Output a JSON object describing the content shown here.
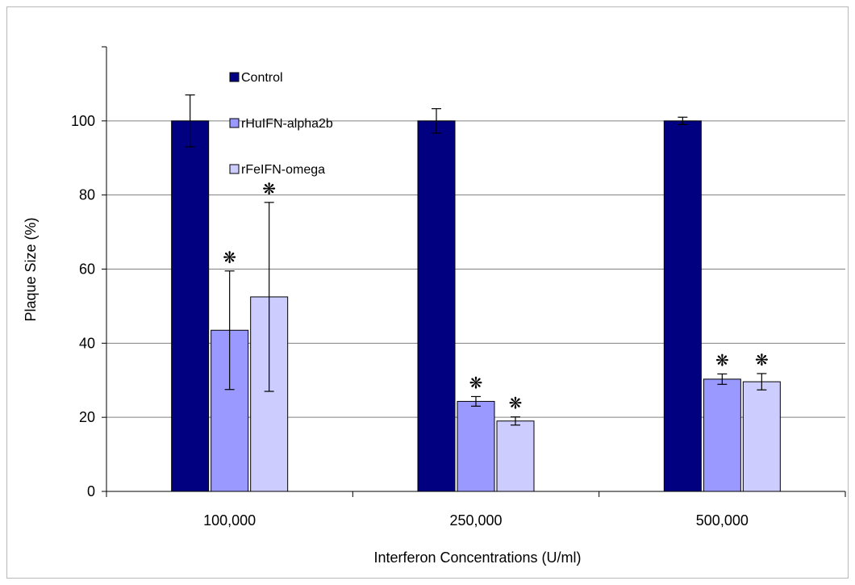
{
  "chart_data": {
    "type": "bar",
    "categories": [
      "100,000",
      "250,000",
      "500,000"
    ],
    "xlabel": "Interferon Concentrations (U/ml)",
    "ylabel": "Plaque Size (%)",
    "ylim": [
      0,
      120
    ],
    "yticks": [
      0,
      20,
      40,
      60,
      80,
      100
    ],
    "grid": true,
    "legend_position": "top-left, inside plot",
    "series": [
      {
        "name": "Control",
        "color": "#000080",
        "values": [
          100,
          100,
          100
        ],
        "errors": [
          7,
          3.3,
          1
        ],
        "significant": [
          false,
          false,
          false
        ]
      },
      {
        "name": "rHuIFN-alpha2b",
        "color": "#9999ff",
        "values": [
          43.5,
          24.3,
          30.3
        ],
        "errors": [
          16,
          1.3,
          1.4
        ],
        "significant": [
          true,
          true,
          true
        ]
      },
      {
        "name": "rFeIFN-omega",
        "color": "#ccccff",
        "values": [
          52.5,
          19,
          29.6
        ],
        "errors": [
          25.5,
          1.1,
          2.2
        ],
        "significant": [
          true,
          true,
          true
        ]
      }
    ],
    "significance_marker": "❋"
  }
}
